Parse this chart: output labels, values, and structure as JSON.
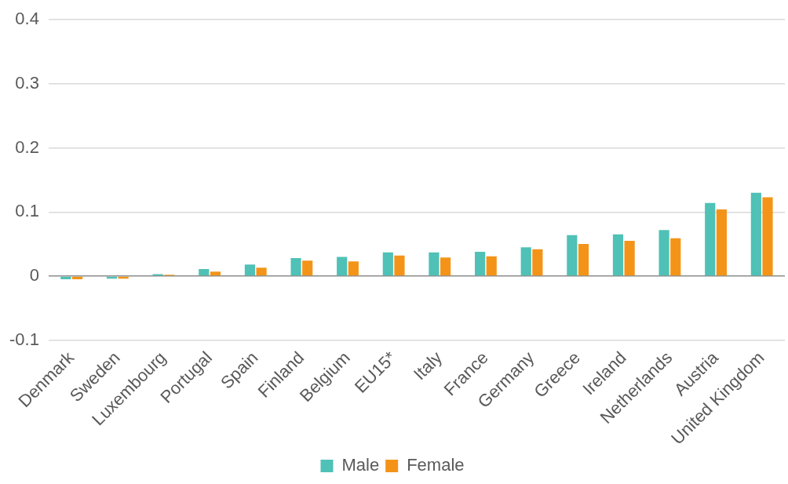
{
  "chart_data": {
    "type": "bar",
    "categories": [
      "Denmark",
      "Sweden",
      "Luxembourg",
      "Portugal",
      "Spain",
      "Finland",
      "Belgium",
      "EU15*",
      "Italy",
      "France",
      "Germany",
      "Greece",
      "Ireland",
      "Netherlands",
      "Austria",
      "United Kingdom"
    ],
    "series": [
      {
        "name": "Male",
        "color": "#4fc1b6",
        "values": [
          -0.005,
          -0.004,
          0.003,
          0.011,
          0.018,
          0.028,
          0.03,
          0.037,
          0.037,
          0.038,
          0.045,
          0.064,
          0.065,
          0.072,
          0.114,
          0.13
        ]
      },
      {
        "name": "Female",
        "color": "#f39419",
        "values": [
          -0.005,
          -0.004,
          0.002,
          0.007,
          0.013,
          0.024,
          0.023,
          0.032,
          0.029,
          0.031,
          0.042,
          0.05,
          0.055,
          0.059,
          0.104,
          0.123
        ]
      }
    ],
    "ylim": [
      -0.1,
      0.4
    ],
    "yticks": [
      -0.1,
      0,
      0.1,
      0.2,
      0.3,
      0.4
    ],
    "grid": "y",
    "legend": "bottom"
  }
}
